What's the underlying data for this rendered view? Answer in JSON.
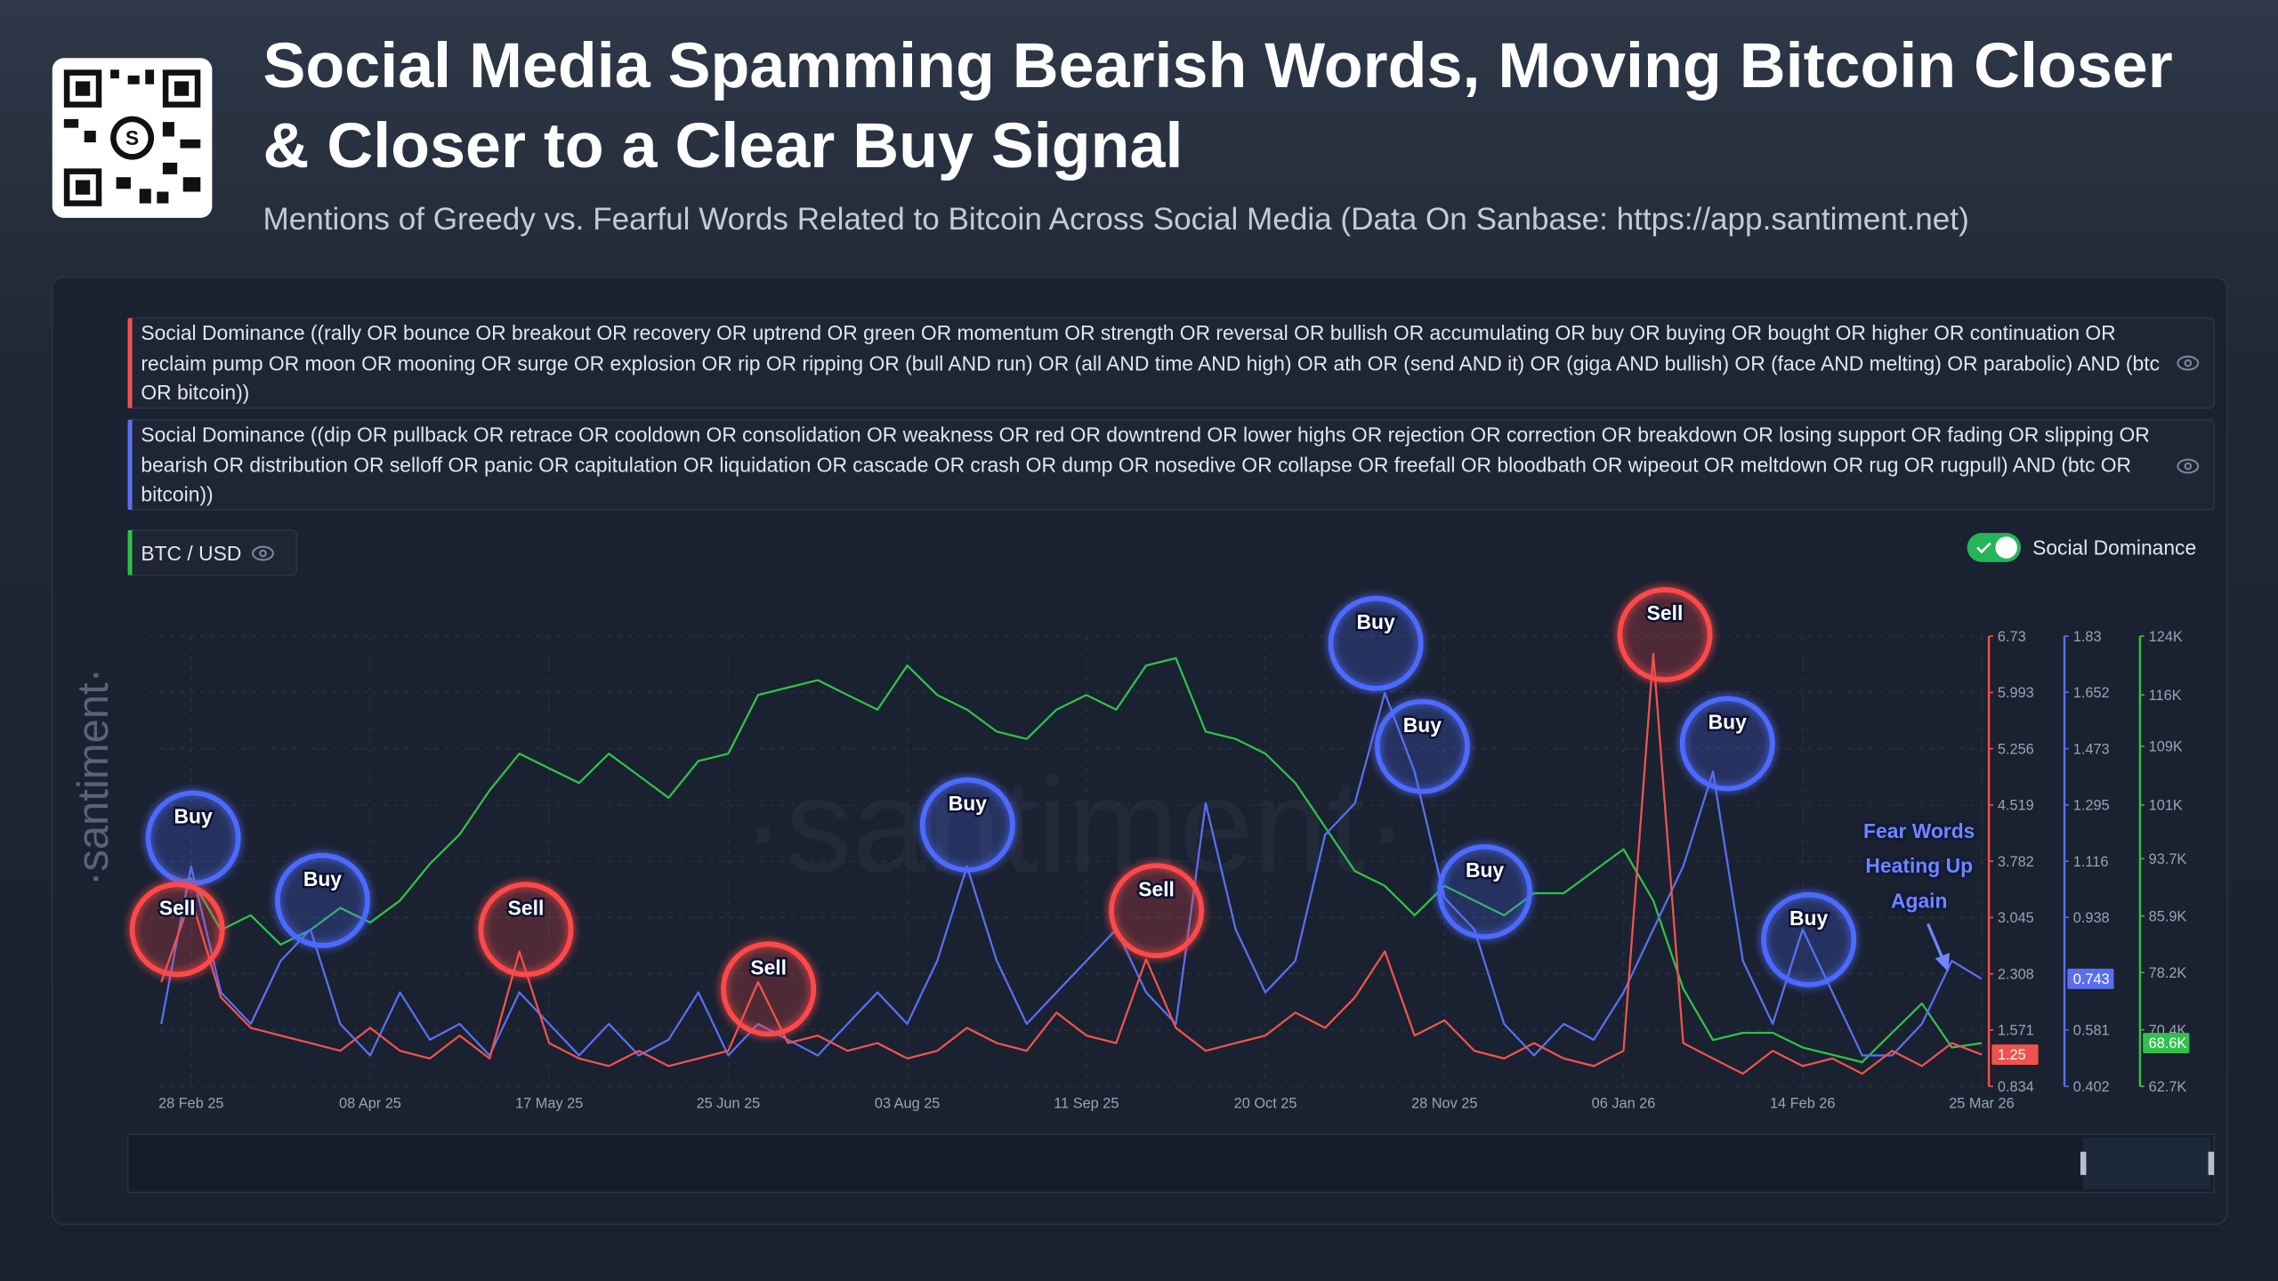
{
  "header": {
    "title": "Social Media Spamming Bearish Words, Moving Bitcoin Closer & Closer to a Clear Buy Signal",
    "subtitle": "Mentions of Greedy vs. Fearful Words Related to Bitcoin Across Social Media (Data On Sanbase: https://app.santiment.net)"
  },
  "chart_data": {
    "type": "line",
    "watermark": "·santiment·",
    "toggle_label": "Social Dominance",
    "grid": true,
    "categories": [
      null,
      "28 Feb 25",
      null,
      null,
      null,
      null,
      null,
      "08 Apr 25",
      null,
      null,
      null,
      null,
      null,
      "17 May 25",
      null,
      null,
      null,
      null,
      null,
      "25 Jun 25",
      null,
      null,
      null,
      null,
      null,
      "03 Aug 25",
      null,
      null,
      null,
      null,
      null,
      "11 Sep 25",
      null,
      null,
      null,
      null,
      null,
      "20 Oct 25",
      null,
      null,
      null,
      null,
      null,
      "28 Nov 25",
      null,
      null,
      null,
      null,
      null,
      "06 Jan 26",
      null,
      null,
      null,
      null,
      null,
      "14 Feb 26",
      null,
      null,
      null,
      null,
      null,
      "25 Mar 26"
    ],
    "series": [
      {
        "name": "Social Dominance ((rally OR bounce OR breakout OR recovery OR uptrend OR green OR momentum OR strength OR reversal OR bullish OR accumulating OR buy OR buying OR bought OR higher OR continuation OR reclaim pump OR moon OR mooning OR surge OR explosion OR rip OR ripping OR (bull AND run) OR (all AND time AND high) OR ath OR (send AND it) OR (giga AND bullish) OR (face AND melting) OR parabolic) AND (btc OR bitcoin))",
        "color": "#f0524d",
        "axis": "y",
        "values": [
          2.2,
          3.3,
          2.0,
          1.6,
          1.5,
          1.4,
          1.3,
          1.6,
          1.3,
          1.2,
          1.5,
          1.2,
          2.6,
          1.4,
          1.2,
          1.1,
          1.3,
          1.1,
          1.2,
          1.3,
          2.2,
          1.4,
          1.5,
          1.3,
          1.4,
          1.2,
          1.3,
          1.6,
          1.4,
          1.3,
          1.8,
          1.5,
          1.4,
          2.5,
          1.6,
          1.3,
          1.4,
          1.5,
          1.8,
          1.6,
          2.0,
          2.6,
          1.5,
          1.7,
          1.3,
          1.2,
          1.4,
          1.2,
          1.1,
          1.3,
          6.5,
          1.4,
          1.2,
          1.0,
          1.3,
          1.1,
          1.2,
          1.0,
          1.3,
          1.1,
          1.4,
          1.25
        ]
      },
      {
        "name": "Social Dominance ((dip OR pullback OR retrace OR cooldown OR consolidation OR weakness OR red OR downtrend OR lower highs OR rejection OR correction OR breakdown OR losing support OR fading OR slipping OR bearish OR distribution OR selloff OR panic OR capitulation OR liquidation OR cascade OR crash OR dump OR nosedive OR collapse OR freefall OR bloodbath OR wipeout OR meltdown OR rug OR rugpull) AND (btc OR bitcoin))",
        "color": "#5a6ef2",
        "axis": "y2",
        "values": [
          0.6,
          1.1,
          0.7,
          0.6,
          0.8,
          0.9,
          0.6,
          0.5,
          0.7,
          0.55,
          0.6,
          0.5,
          0.7,
          0.6,
          0.5,
          0.6,
          0.5,
          0.55,
          0.7,
          0.5,
          0.6,
          0.55,
          0.5,
          0.6,
          0.7,
          0.6,
          0.8,
          1.1,
          0.8,
          0.6,
          0.7,
          0.8,
          0.9,
          0.7,
          0.6,
          1.3,
          0.9,
          0.7,
          0.8,
          1.2,
          1.3,
          1.65,
          1.4,
          1.0,
          0.9,
          0.6,
          0.5,
          0.6,
          0.55,
          0.7,
          0.9,
          1.1,
          1.4,
          0.8,
          0.6,
          0.9,
          0.7,
          0.5,
          0.5,
          0.6,
          0.8,
          0.743
        ]
      },
      {
        "name": "BTC / USD",
        "color": "#2fc24a",
        "axis": "y3",
        "values": [
          90,
          91,
          84,
          86,
          82,
          84,
          87,
          85,
          88,
          93,
          97,
          103,
          108,
          106,
          104,
          108,
          105,
          102,
          107,
          108,
          116,
          117,
          118,
          116,
          114,
          120,
          116,
          114,
          111,
          110,
          114,
          116,
          114,
          120,
          121,
          111,
          110,
          108,
          104,
          98,
          92,
          90,
          86,
          90,
          88,
          86,
          89,
          89,
          92,
          95,
          88,
          76,
          69,
          70,
          70,
          68,
          67,
          66,
          70,
          74,
          68,
          68.6
        ],
        "value_labels": [
          null,
          null,
          null,
          null,
          null,
          null,
          null,
          null,
          null,
          null,
          null,
          null,
          null,
          null,
          null,
          null,
          null,
          null,
          null,
          null,
          null,
          null,
          null,
          null,
          null,
          null,
          null,
          null,
          null,
          null,
          null,
          null,
          null,
          null,
          null,
          null,
          null,
          null,
          null,
          null,
          null,
          null,
          null,
          null,
          null,
          null,
          null,
          null,
          null,
          null,
          null,
          null,
          null,
          null,
          null,
          null,
          null,
          null,
          null,
          null,
          null,
          "68.6K"
        ]
      }
    ],
    "ylim": [
      0.834,
      6.73
    ],
    "yticks": [
      0.834,
      1.571,
      2.308,
      3.045,
      3.782,
      4.519,
      5.256,
      5.993,
      6.73
    ],
    "y2lim": [
      0.402,
      1.83
    ],
    "y2ticks": [
      0.402,
      0.581,
      0.938,
      1.116,
      1.295,
      1.473,
      1.652,
      1.83
    ],
    "y3lim": [
      62.7,
      124
    ],
    "y3ticks": [
      {
        "value": 62.7,
        "label": "62.7K"
      },
      {
        "value": 70.4,
        "label": "70.4K"
      },
      {
        "value": 78.2,
        "label": "78.2K"
      },
      {
        "value": 85.9,
        "label": "85.9K"
      },
      {
        "value": 93.7,
        "label": "93.7K"
      },
      {
        "value": 101,
        "label": "101K"
      },
      {
        "value": 109,
        "label": "109K"
      },
      {
        "value": 116,
        "label": "116K"
      },
      {
        "value": 124,
        "label": "124K"
      }
    ],
    "annotations": [
      {
        "text": "Buy",
        "color": "#4d6bff"
      },
      {
        "text": "Sell",
        "color": "#ff4848"
      },
      {
        "text": "Buy",
        "color": "#4d6bff"
      },
      {
        "text": "Sell",
        "color": "#ff4848"
      },
      {
        "text": "Sell",
        "color": "#ff4848"
      },
      {
        "text": "Buy",
        "color": "#4d6bff"
      },
      {
        "text": "Sell",
        "color": "#ff4848"
      },
      {
        "text": "Buy",
        "color": "#4d6bff"
      },
      {
        "text": "Buy",
        "color": "#4d6bff"
      },
      {
        "text": "Buy",
        "color": "#4d6bff"
      },
      {
        "text": "Sell",
        "color": "#ff4848"
      },
      {
        "text": "Buy",
        "color": "#4d6bff"
      },
      {
        "text": "Buy",
        "color": "#4d6bff"
      },
      {
        "text": "Fear Words Heating Up Again",
        "color": "#6f86ff"
      }
    ]
  }
}
